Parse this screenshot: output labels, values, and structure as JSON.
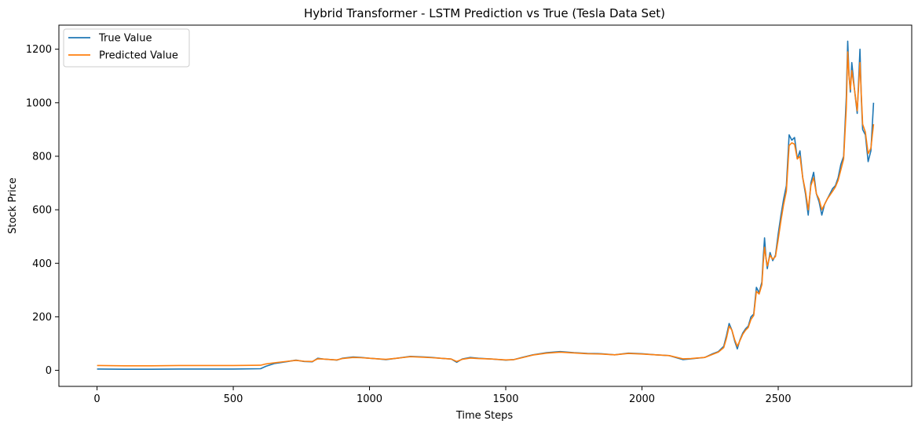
{
  "chart_data": {
    "type": "line",
    "title": "Hybrid Transformer - LSTM Prediction vs True (Tesla Data Set)",
    "xlabel": "Time Steps",
    "ylabel": "Stock Price",
    "xlim": [
      -140,
      2990
    ],
    "ylim": [
      -60,
      1290
    ],
    "xticks": [
      0,
      500,
      1000,
      1500,
      2000,
      2500
    ],
    "yticks": [
      0,
      200,
      400,
      600,
      800,
      1000,
      1200
    ],
    "grid": false,
    "legend": "top-left",
    "series": [
      {
        "name": "True Value",
        "color": "#1f77b4",
        "points": [
          [
            0,
            5
          ],
          [
            100,
            4
          ],
          [
            200,
            4
          ],
          [
            300,
            5
          ],
          [
            400,
            5
          ],
          [
            500,
            5
          ],
          [
            600,
            6
          ],
          [
            620,
            15
          ],
          [
            650,
            25
          ],
          [
            700,
            33
          ],
          [
            730,
            38
          ],
          [
            760,
            33
          ],
          [
            790,
            32
          ],
          [
            810,
            45
          ],
          [
            830,
            42
          ],
          [
            860,
            40
          ],
          [
            880,
            38
          ],
          [
            900,
            45
          ],
          [
            940,
            50
          ],
          [
            970,
            48
          ],
          [
            1000,
            45
          ],
          [
            1030,
            43
          ],
          [
            1060,
            40
          ],
          [
            1100,
            45
          ],
          [
            1150,
            52
          ],
          [
            1200,
            50
          ],
          [
            1230,
            48
          ],
          [
            1260,
            45
          ],
          [
            1300,
            42
          ],
          [
            1320,
            30
          ],
          [
            1340,
            42
          ],
          [
            1370,
            48
          ],
          [
            1400,
            45
          ],
          [
            1450,
            42
          ],
          [
            1500,
            38
          ],
          [
            1530,
            40
          ],
          [
            1560,
            48
          ],
          [
            1600,
            58
          ],
          [
            1650,
            66
          ],
          [
            1700,
            70
          ],
          [
            1750,
            66
          ],
          [
            1800,
            63
          ],
          [
            1850,
            62
          ],
          [
            1900,
            58
          ],
          [
            1950,
            64
          ],
          [
            2000,
            62
          ],
          [
            2050,
            58
          ],
          [
            2100,
            55
          ],
          [
            2150,
            40
          ],
          [
            2180,
            43
          ],
          [
            2200,
            45
          ],
          [
            2230,
            48
          ],
          [
            2260,
            62
          ],
          [
            2280,
            70
          ],
          [
            2300,
            90
          ],
          [
            2310,
            130
          ],
          [
            2320,
            175
          ],
          [
            2330,
            150
          ],
          [
            2340,
            110
          ],
          [
            2350,
            80
          ],
          [
            2360,
            115
          ],
          [
            2370,
            140
          ],
          [
            2380,
            155
          ],
          [
            2390,
            165
          ],
          [
            2400,
            200
          ],
          [
            2410,
            210
          ],
          [
            2420,
            310
          ],
          [
            2430,
            290
          ],
          [
            2440,
            330
          ],
          [
            2445,
            420
          ],
          [
            2450,
            495
          ],
          [
            2455,
            420
          ],
          [
            2460,
            380
          ],
          [
            2470,
            440
          ],
          [
            2480,
            410
          ],
          [
            2490,
            430
          ],
          [
            2500,
            510
          ],
          [
            2510,
            580
          ],
          [
            2520,
            640
          ],
          [
            2530,
            690
          ],
          [
            2540,
            880
          ],
          [
            2550,
            860
          ],
          [
            2560,
            870
          ],
          [
            2570,
            790
          ],
          [
            2580,
            820
          ],
          [
            2590,
            720
          ],
          [
            2600,
            660
          ],
          [
            2610,
            580
          ],
          [
            2620,
            700
          ],
          [
            2630,
            740
          ],
          [
            2640,
            660
          ],
          [
            2650,
            630
          ],
          [
            2660,
            580
          ],
          [
            2670,
            620
          ],
          [
            2680,
            640
          ],
          [
            2690,
            660
          ],
          [
            2700,
            680
          ],
          [
            2710,
            690
          ],
          [
            2720,
            720
          ],
          [
            2730,
            770
          ],
          [
            2740,
            800
          ],
          [
            2750,
            1020
          ],
          [
            2755,
            1230
          ],
          [
            2760,
            1100
          ],
          [
            2765,
            1040
          ],
          [
            2770,
            1150
          ],
          [
            2780,
            1050
          ],
          [
            2790,
            960
          ],
          [
            2800,
            1200
          ],
          [
            2805,
            1020
          ],
          [
            2810,
            900
          ],
          [
            2820,
            880
          ],
          [
            2830,
            780
          ],
          [
            2840,
            820
          ],
          [
            2850,
            1000
          ]
        ]
      },
      {
        "name": "Predicted Value",
        "color": "#ff7f0e",
        "points": [
          [
            0,
            18
          ],
          [
            100,
            17
          ],
          [
            200,
            17
          ],
          [
            300,
            18
          ],
          [
            400,
            18
          ],
          [
            500,
            18
          ],
          [
            600,
            19
          ],
          [
            620,
            24
          ],
          [
            650,
            28
          ],
          [
            700,
            34
          ],
          [
            730,
            37
          ],
          [
            760,
            34
          ],
          [
            790,
            33
          ],
          [
            810,
            43
          ],
          [
            830,
            42
          ],
          [
            860,
            40
          ],
          [
            880,
            39
          ],
          [
            900,
            44
          ],
          [
            940,
            48
          ],
          [
            970,
            47
          ],
          [
            1000,
            45
          ],
          [
            1030,
            43
          ],
          [
            1060,
            41
          ],
          [
            1100,
            45
          ],
          [
            1150,
            51
          ],
          [
            1200,
            49
          ],
          [
            1230,
            47
          ],
          [
            1260,
            45
          ],
          [
            1300,
            42
          ],
          [
            1320,
            33
          ],
          [
            1340,
            41
          ],
          [
            1370,
            46
          ],
          [
            1400,
            44
          ],
          [
            1450,
            42
          ],
          [
            1500,
            39
          ],
          [
            1530,
            40
          ],
          [
            1560,
            47
          ],
          [
            1600,
            57
          ],
          [
            1650,
            64
          ],
          [
            1700,
            68
          ],
          [
            1750,
            65
          ],
          [
            1800,
            62
          ],
          [
            1850,
            61
          ],
          [
            1900,
            58
          ],
          [
            1950,
            63
          ],
          [
            2000,
            61
          ],
          [
            2050,
            58
          ],
          [
            2100,
            55
          ],
          [
            2150,
            43
          ],
          [
            2180,
            44
          ],
          [
            2200,
            46
          ],
          [
            2230,
            48
          ],
          [
            2260,
            60
          ],
          [
            2280,
            68
          ],
          [
            2300,
            85
          ],
          [
            2310,
            120
          ],
          [
            2320,
            165
          ],
          [
            2330,
            150
          ],
          [
            2340,
            115
          ],
          [
            2350,
            90
          ],
          [
            2360,
            112
          ],
          [
            2370,
            135
          ],
          [
            2380,
            150
          ],
          [
            2390,
            160
          ],
          [
            2400,
            190
          ],
          [
            2410,
            205
          ],
          [
            2420,
            295
          ],
          [
            2430,
            285
          ],
          [
            2440,
            320
          ],
          [
            2445,
            400
          ],
          [
            2450,
            460
          ],
          [
            2455,
            420
          ],
          [
            2460,
            390
          ],
          [
            2470,
            430
          ],
          [
            2480,
            415
          ],
          [
            2490,
            425
          ],
          [
            2500,
            490
          ],
          [
            2510,
            560
          ],
          [
            2520,
            620
          ],
          [
            2530,
            670
          ],
          [
            2540,
            840
          ],
          [
            2550,
            850
          ],
          [
            2560,
            845
          ],
          [
            2570,
            790
          ],
          [
            2580,
            800
          ],
          [
            2590,
            720
          ],
          [
            2600,
            670
          ],
          [
            2610,
            600
          ],
          [
            2620,
            690
          ],
          [
            2630,
            720
          ],
          [
            2640,
            660
          ],
          [
            2650,
            640
          ],
          [
            2660,
            600
          ],
          [
            2670,
            620
          ],
          [
            2680,
            640
          ],
          [
            2690,
            655
          ],
          [
            2700,
            670
          ],
          [
            2710,
            685
          ],
          [
            2720,
            710
          ],
          [
            2730,
            750
          ],
          [
            2740,
            790
          ],
          [
            2750,
            980
          ],
          [
            2755,
            1190
          ],
          [
            2760,
            1100
          ],
          [
            2765,
            1050
          ],
          [
            2770,
            1120
          ],
          [
            2780,
            1050
          ],
          [
            2790,
            970
          ],
          [
            2800,
            1150
          ],
          [
            2805,
            1030
          ],
          [
            2810,
            920
          ],
          [
            2820,
            890
          ],
          [
            2830,
            810
          ],
          [
            2840,
            830
          ],
          [
            2850,
            920
          ]
        ]
      }
    ]
  }
}
